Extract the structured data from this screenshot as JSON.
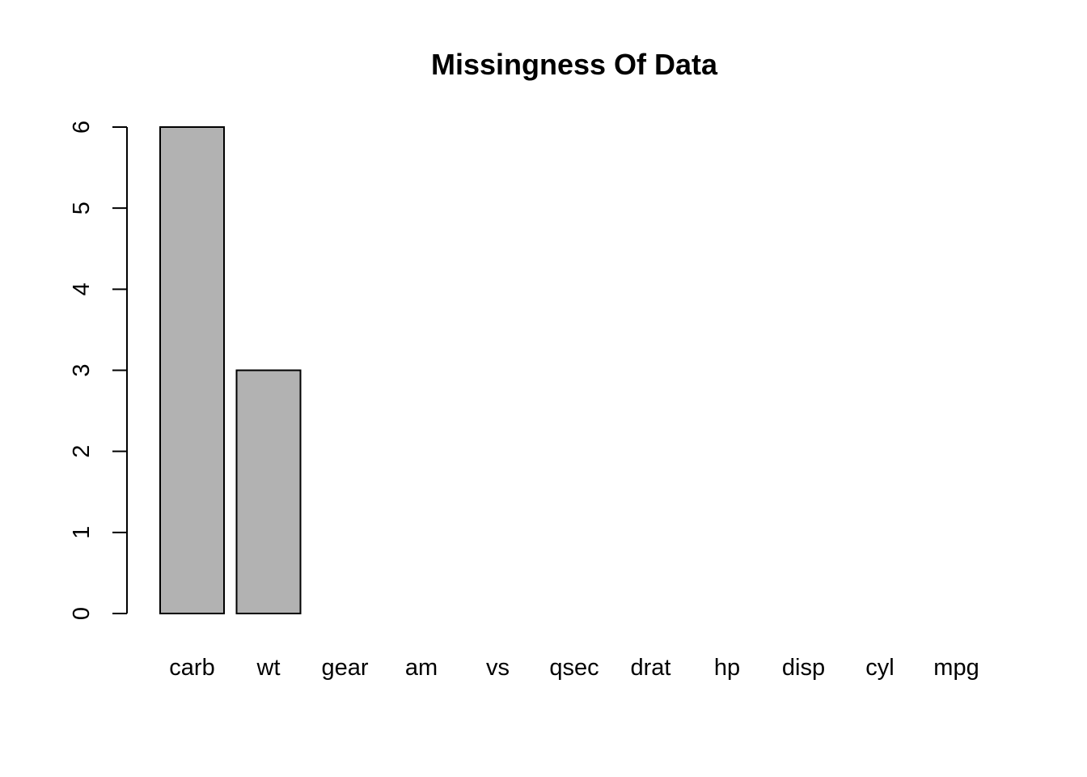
{
  "chart_data": {
    "type": "bar",
    "title": "Missingness Of Data",
    "xlabel": "",
    "ylabel": "",
    "categories": [
      "carb",
      "wt",
      "gear",
      "am",
      "vs",
      "qsec",
      "drat",
      "hp",
      "disp",
      "cyl",
      "mpg"
    ],
    "values": [
      6,
      3,
      0,
      0,
      0,
      0,
      0,
      0,
      0,
      0,
      0
    ],
    "ylim": [
      0,
      6
    ],
    "yticks": [
      "0",
      "1",
      "2",
      "3",
      "4",
      "5",
      "6"
    ],
    "grid": false,
    "legend": "none",
    "bar_color": "#b2b2b2",
    "bar_border_color": "#000000"
  }
}
